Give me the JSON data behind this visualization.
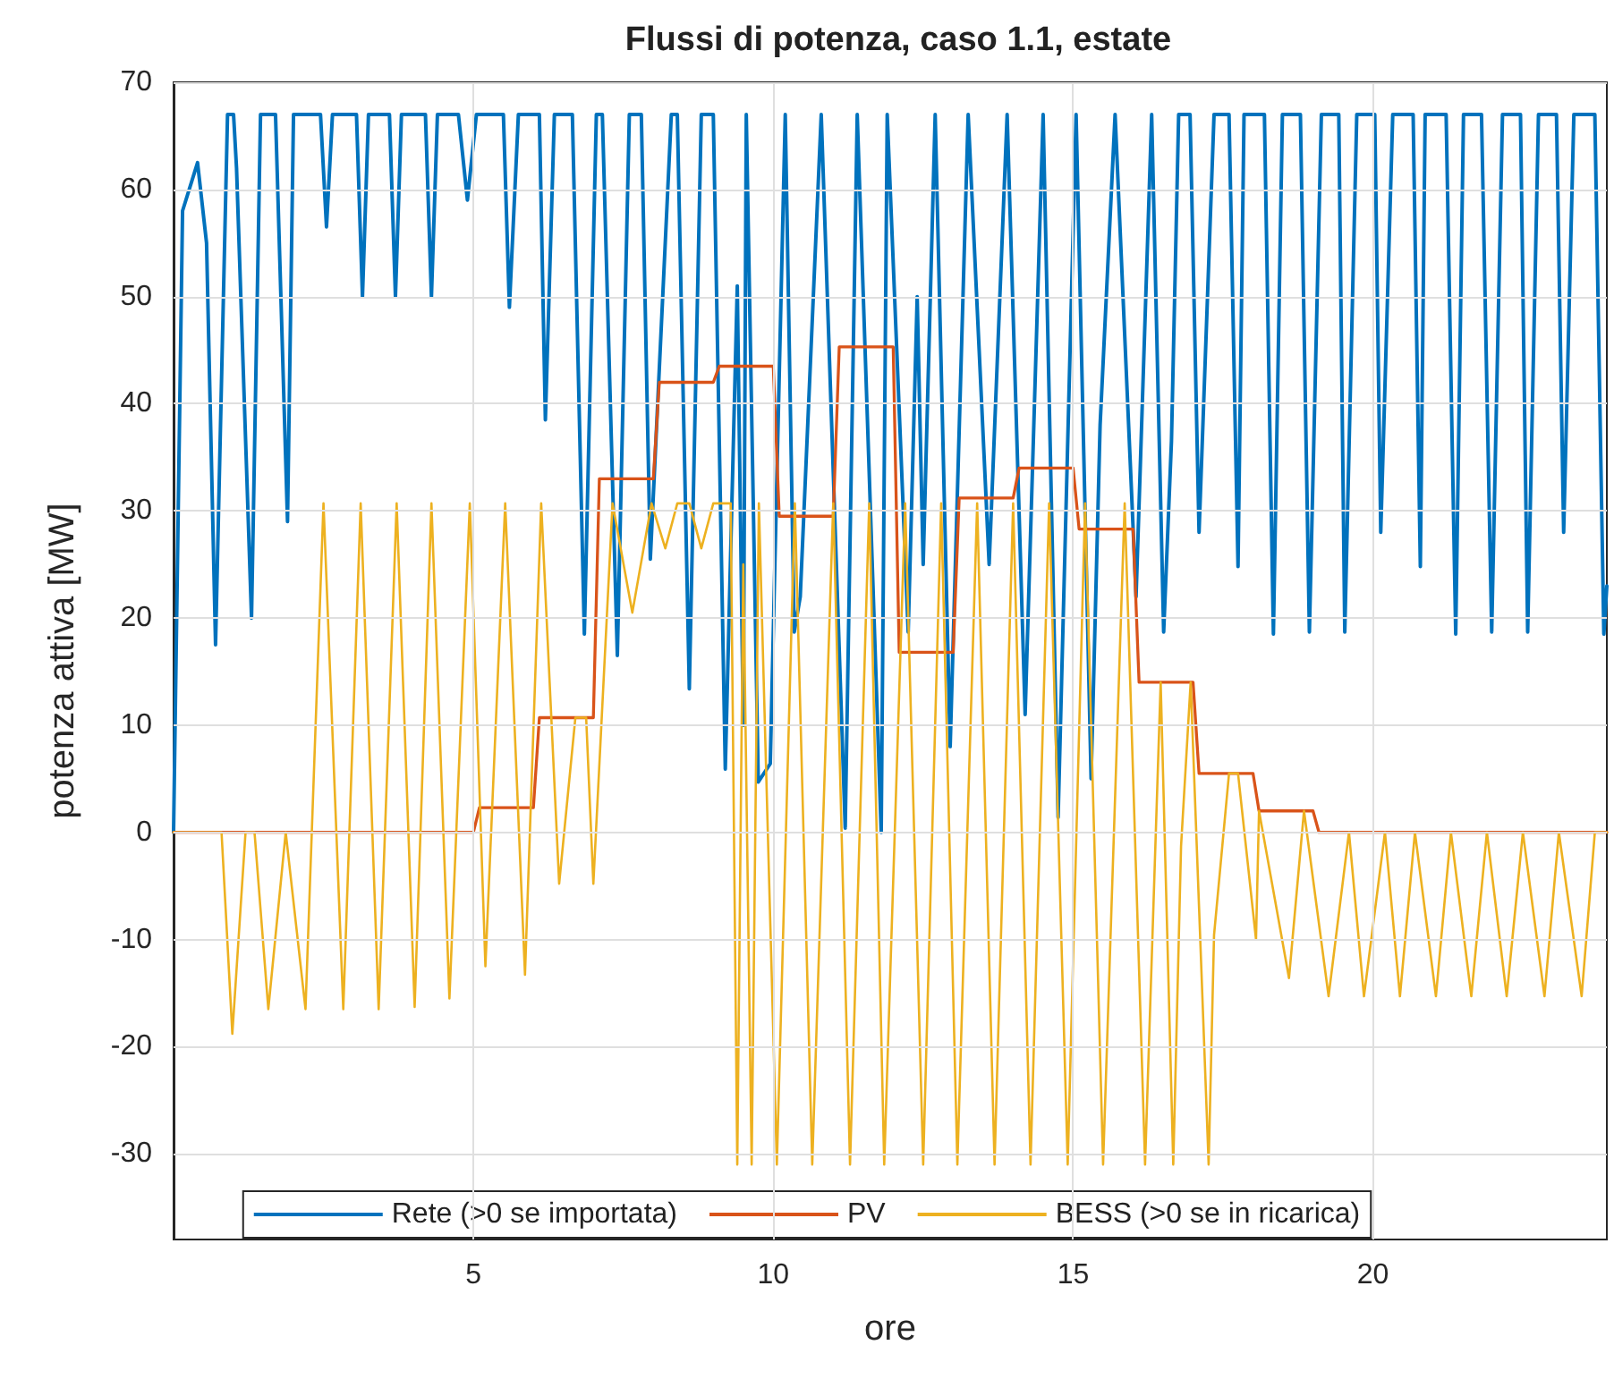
{
  "chart_data": {
    "type": "line",
    "title": "Flussi di potenza, caso 1.1, estate",
    "xlabel": "ore",
    "ylabel": "potenza attiva [MW]",
    "xlim": [
      0,
      23.9
    ],
    "xticks": [
      5,
      10,
      15,
      20
    ],
    "ylim": [
      -38,
      70
    ],
    "yticks": [
      -30,
      -20,
      -10,
      0,
      10,
      20,
      30,
      40,
      50,
      60,
      70
    ],
    "grid": true,
    "legend": "bottom",
    "marker": "none",
    "series": [
      {
        "name": "Rete (>0 se importata)",
        "color": "#0072bd",
        "x": [
          0,
          0.15,
          0.4,
          0.55,
          0.7,
          0.9,
          1.0,
          1.05,
          1.3,
          1.45,
          1.7,
          1.9,
          2.0,
          2.45,
          2.55,
          2.65,
          3.05,
          3.15,
          3.25,
          3.6,
          3.7,
          3.8,
          4.2,
          4.3,
          4.4,
          4.75,
          4.9,
          5.05,
          5.5,
          5.6,
          5.75,
          6.1,
          6.2,
          6.35,
          6.65,
          6.85,
          7.05,
          7.15,
          7.4,
          7.6,
          7.8,
          7.95,
          8.3,
          8.4,
          8.6,
          8.8,
          9.0,
          9.2,
          9.4,
          9.5,
          9.55,
          9.75,
          9.95,
          10.2,
          10.35,
          10.45,
          10.8,
          11.2,
          11.4,
          11.8,
          11.9,
          12.25,
          12.4,
          12.5,
          12.7,
          12.95,
          13.25,
          13.6,
          13.9,
          14.2,
          14.5,
          14.75,
          15.05,
          15.3,
          15.45,
          15.7,
          16.05,
          16.31,
          16.51,
          16.64,
          16.76,
          16.95,
          17.1,
          17.35,
          17.6,
          17.75,
          17.85,
          18.19,
          18.34,
          18.49,
          18.79,
          18.94,
          19.14,
          19.43,
          19.53,
          19.73,
          20.03,
          20.13,
          20.33,
          20.67,
          20.79,
          20.87,
          21.22,
          21.38,
          21.51,
          21.81,
          21.98,
          22.16,
          22.46,
          22.58,
          22.76,
          23.06,
          23.18,
          23.35,
          23.7,
          23.85,
          23.9
        ],
        "values": [
          0,
          58,
          62.5,
          55,
          17.5,
          67,
          67,
          62,
          20,
          67,
          67,
          29,
          67,
          67,
          56.5,
          67,
          67,
          50,
          67,
          67,
          50,
          67,
          67,
          50,
          67,
          67,
          59,
          67,
          67,
          49,
          67,
          67,
          38.5,
          67,
          67,
          18.5,
          67,
          67,
          16.5,
          67,
          67,
          25.5,
          67,
          67,
          13.4,
          67,
          67,
          5.9,
          51,
          10,
          67,
          4.7,
          6.4,
          67,
          18.7,
          22,
          67,
          0.4,
          67,
          0,
          67,
          18.7,
          50,
          25,
          67,
          8,
          67,
          25,
          67,
          11,
          67,
          1.4,
          67,
          5,
          38,
          67,
          22,
          67,
          18.7,
          36.5,
          67,
          67,
          28,
          67,
          67,
          24.8,
          67,
          67,
          18.5,
          67,
          67,
          18.7,
          67,
          67,
          18.7,
          67,
          67,
          28,
          67,
          67,
          24.8,
          67,
          67,
          18.5,
          67,
          67,
          18.7,
          67,
          67,
          18.7,
          67,
          67,
          28,
          67,
          67,
          18.5,
          23
        ]
      },
      {
        "name": "PV",
        "color": "#d95319",
        "x": [
          0,
          5,
          5.1,
          6,
          6.1,
          7,
          7.1,
          8,
          8.1,
          9,
          9.1,
          10,
          10.1,
          11,
          11.1,
          12,
          12.1,
          13,
          13.1,
          14,
          14.1,
          15,
          15.1,
          16,
          16.1,
          17,
          17.1,
          18,
          18.1,
          19,
          19.1,
          23.9
        ],
        "values": [
          0,
          0,
          2.3,
          2.3,
          10.7,
          10.7,
          33,
          33,
          42,
          42,
          43.5,
          43.5,
          29.5,
          29.5,
          45.3,
          45.3,
          16.8,
          16.8,
          31.2,
          31.2,
          34,
          34,
          28.3,
          28.3,
          14,
          14,
          5.5,
          5.5,
          2,
          2,
          0,
          0
        ]
      },
      {
        "name": "BESS (>0 se in ricarica)",
        "color": "#edb120",
        "x": [
          0,
          0.8,
          0.98,
          1.2,
          1.35,
          1.58,
          1.87,
          2.2,
          2.5,
          2.83,
          3.12,
          3.42,
          3.72,
          4.02,
          4.3,
          4.6,
          4.94,
          5.2,
          5.53,
          5.86,
          6.13,
          6.43,
          6.7,
          6.88,
          7.0,
          7.32,
          7.65,
          7.97,
          8.2,
          8.4,
          8.6,
          8.8,
          9.0,
          9.29,
          9.4,
          9.5,
          9.64,
          9.76,
          10.06,
          10.36,
          10.65,
          11.0,
          11.28,
          11.6,
          11.85,
          12.2,
          12.5,
          12.8,
          13.07,
          13.4,
          13.69,
          14.0,
          14.29,
          14.6,
          14.91,
          15.2,
          15.5,
          15.86,
          16.2,
          16.46,
          16.67,
          16.8,
          16.96,
          17.26,
          17.35,
          17.6,
          17.75,
          18.05,
          18.1,
          18.6,
          18.85,
          19.26,
          19.6,
          19.85,
          20.2,
          20.45,
          20.7,
          21.05,
          21.3,
          21.64,
          21.9,
          22.23,
          22.5,
          22.86,
          23.1,
          23.48,
          23.7,
          23.9
        ],
        "values": [
          0,
          0,
          -18.8,
          0,
          0,
          -16.5,
          0,
          -16.5,
          30.7,
          -16.5,
          30.7,
          -16.5,
          30.7,
          -16.3,
          30.7,
          -15.5,
          30.7,
          -12.5,
          30.7,
          -13.3,
          30.7,
          -4.8,
          10.7,
          10.7,
          -4.8,
          30.7,
          20.5,
          30.7,
          26.5,
          30.7,
          30.7,
          26.5,
          30.7,
          30.7,
          -31,
          25,
          -31,
          30.7,
          -31,
          30.7,
          -31,
          30.7,
          -31,
          30.7,
          -31,
          30.7,
          -31,
          30.7,
          -31,
          30.7,
          -31,
          30.7,
          -31,
          30.7,
          -31,
          30.7,
          -31,
          30.7,
          -31,
          14,
          -31,
          -1.3,
          14,
          -31,
          -9.6,
          5.5,
          5.5,
          -10,
          2,
          -13.6,
          2,
          -15.3,
          0,
          -15.3,
          0,
          -15.3,
          0,
          -15.3,
          0,
          -15.3,
          0,
          -15.3,
          0,
          -15.3,
          0,
          -15.3,
          0,
          0
        ]
      }
    ]
  }
}
